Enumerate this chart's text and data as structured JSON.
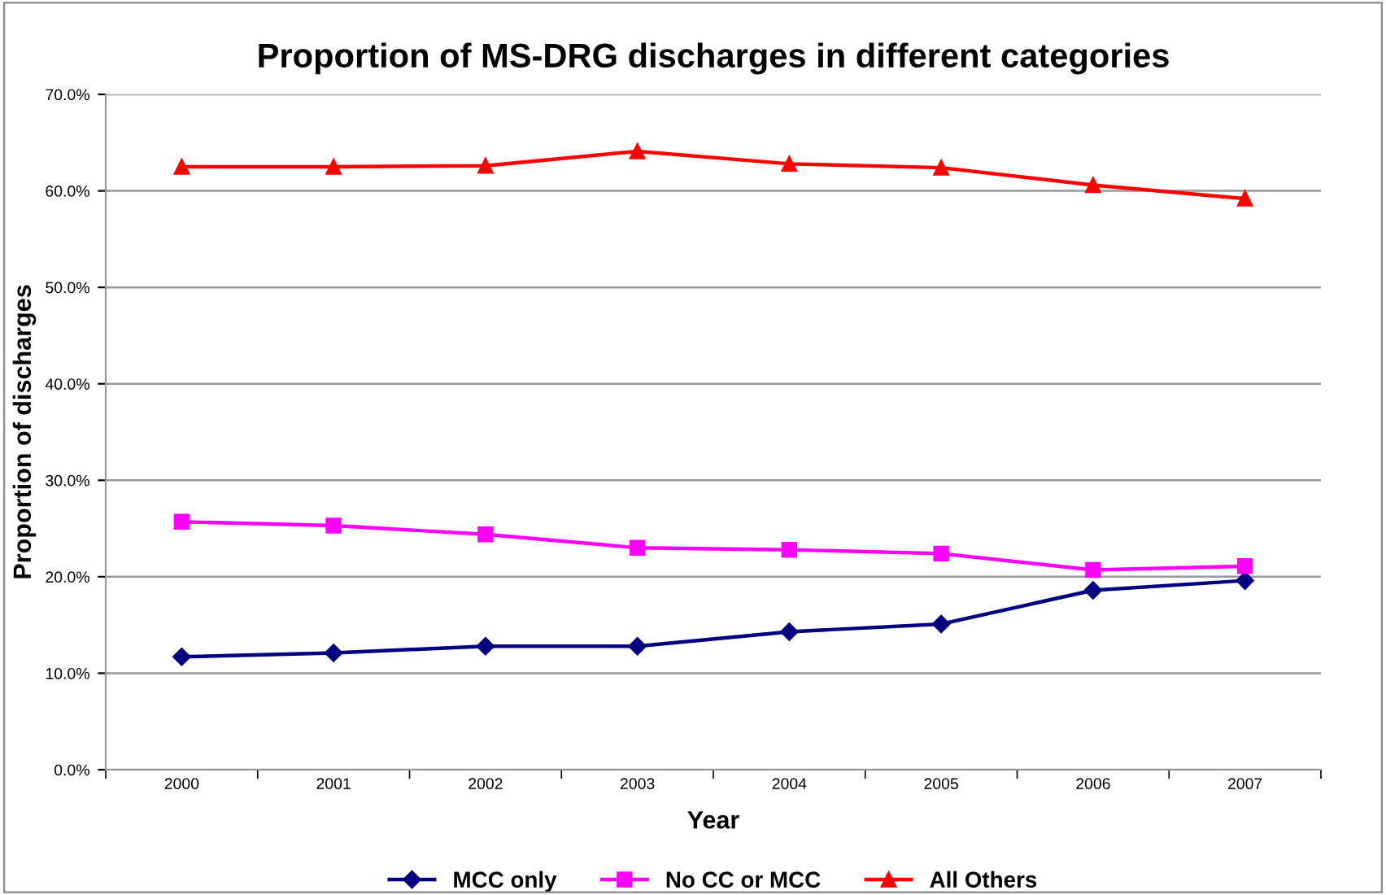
{
  "chart_data": {
    "type": "line",
    "title": "Proportion of MS-DRG discharges in different categories",
    "xlabel": "Year",
    "ylabel": "Proportion of discharges",
    "categories": [
      "2000",
      "2001",
      "2002",
      "2003",
      "2004",
      "2005",
      "2006",
      "2007"
    ],
    "series": [
      {
        "name": "MCC only",
        "color": "#000080",
        "marker": "diamond",
        "values": [
          11.7,
          12.1,
          12.8,
          12.8,
          14.3,
          15.1,
          18.6,
          19.6
        ]
      },
      {
        "name": "No CC or MCC",
        "color": "#ff00ff",
        "marker": "square",
        "values": [
          25.7,
          25.3,
          24.4,
          23.0,
          22.8,
          22.4,
          20.7,
          21.1
        ]
      },
      {
        "name": "All Others",
        "color": "#ff0000",
        "marker": "triangle",
        "values": [
          62.5,
          62.5,
          62.6,
          64.1,
          62.8,
          62.4,
          60.6,
          59.2
        ]
      }
    ],
    "ylim": [
      0,
      70
    ],
    "yticks": [
      {
        "value": 0,
        "label": "0.0%"
      },
      {
        "value": 10,
        "label": "10.0%"
      },
      {
        "value": 20,
        "label": "20.0%"
      },
      {
        "value": 30,
        "label": "30.0%"
      },
      {
        "value": 40,
        "label": "40.0%"
      },
      {
        "value": 50,
        "label": "50.0%"
      },
      {
        "value": 60,
        "label": "60.0%"
      },
      {
        "value": 70,
        "label": "70.0%"
      }
    ],
    "grid": "y",
    "legend": "bottom",
    "line_style": "solid"
  }
}
